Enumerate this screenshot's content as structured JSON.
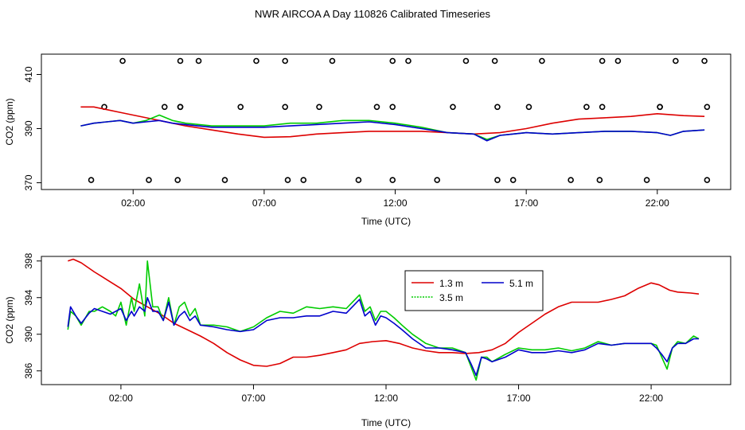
{
  "title": "NWR AIRCOA A  Day 110826  Calibrated Timeseries",
  "colors": {
    "1.3 m": "#dd0000",
    "3.5 m": "#00cc00",
    "5.1 m": "#0000cc"
  },
  "chart_data": [
    {
      "type": "line",
      "panel": "top",
      "xlabel": "Time (UTC)",
      "ylabel": "CO2 (ppm)",
      "xlim": [
        -1.5,
        24.8
      ],
      "ylim": [
        367.5,
        417.5
      ],
      "x_ticks": [
        2,
        7,
        12,
        17,
        22
      ],
      "x_tick_labels": [
        "02:00",
        "07:00",
        "12:00",
        "17:00",
        "22:00"
      ],
      "y_ticks": [
        370,
        390,
        410
      ],
      "y_tick_labels": [
        "370",
        "390",
        "410"
      ],
      "markers": {
        "upper_y": 415,
        "upper_x": [
          1.6,
          3.8,
          4.5,
          6.7,
          7.8,
          9.6,
          11.9,
          12.5,
          14.7,
          15.8,
          17.6,
          19.9,
          20.5,
          22.7,
          23.8
        ],
        "middle_y": 398,
        "middle_x": [
          0.9,
          3.2,
          3.8,
          3.8,
          6.1,
          7.8,
          9.1,
          11.3,
          11.9,
          14.2,
          15.9,
          17.1,
          19.3,
          19.9,
          22.1,
          22.1,
          23.9
        ],
        "lower_y": 371,
        "lower_x": [
          0.4,
          2.6,
          3.7,
          5.5,
          7.9,
          8.5,
          10.6,
          11.9,
          13.6,
          15.9,
          16.5,
          18.7,
          19.8,
          21.6,
          23.9
        ]
      },
      "series": [
        {
          "name": "1.3 m",
          "x": [
            0,
            0.5,
            1,
            1.5,
            2,
            2.5,
            3,
            4,
            5,
            6,
            7,
            8,
            9,
            10,
            11,
            12,
            13,
            14,
            15,
            16,
            17,
            18,
            19,
            20,
            21,
            22,
            23,
            23.8
          ],
          "values": [
            398,
            398,
            397,
            396,
            395,
            394,
            393,
            391,
            389.5,
            388,
            386.8,
            387,
            388,
            388.5,
            389,
            389,
            389,
            388.5,
            388,
            388.5,
            390,
            392,
            393.5,
            394,
            394.5,
            395.5,
            394.8,
            394.5
          ]
        },
        {
          "name": "3.5 m",
          "x": [
            0,
            0.5,
            1,
            1.5,
            2,
            2.5,
            3,
            3.5,
            4,
            5,
            6,
            7,
            8,
            9,
            10,
            11,
            12,
            13,
            14,
            15,
            15.5,
            16,
            17,
            18,
            19,
            20,
            21,
            22,
            22.5,
            23,
            23.8
          ],
          "values": [
            391,
            392,
            392.5,
            393,
            392,
            393,
            395,
            393,
            392,
            391,
            391,
            391,
            392,
            392,
            393,
            393,
            392,
            390.5,
            388.5,
            388,
            386,
            387.5,
            388.5,
            388,
            388.5,
            389,
            389,
            388.5,
            387.5,
            389,
            389.5
          ]
        },
        {
          "name": "5.1 m",
          "x": [
            0,
            0.5,
            1,
            1.5,
            2,
            2.5,
            3,
            3.5,
            4,
            5,
            6,
            7,
            8,
            9,
            10,
            11,
            12,
            13,
            14,
            15,
            15.5,
            16,
            17,
            18,
            19,
            20,
            21,
            22,
            22.5,
            23,
            23.8
          ],
          "values": [
            391,
            392,
            392.5,
            393,
            392,
            392.5,
            393,
            392,
            391.5,
            390.5,
            390.5,
            390.5,
            391,
            391.5,
            392,
            392.5,
            391.5,
            390,
            388.5,
            388,
            385.5,
            387.5,
            388.5,
            388,
            388.5,
            389,
            389,
            388.5,
            387.5,
            389,
            389.5
          ]
        }
      ]
    },
    {
      "type": "line",
      "panel": "bottom",
      "xlabel": "Time (UTC)",
      "ylabel": "CO2 (ppm)",
      "xlim": [
        -1.0,
        25.0
      ],
      "ylim": [
        384.5,
        398.5
      ],
      "x_ticks": [
        2,
        7,
        12,
        17,
        22
      ],
      "x_tick_labels": [
        "02:00",
        "07:00",
        "12:00",
        "17:00",
        "22:00"
      ],
      "y_ticks": [
        386,
        390,
        394,
        398
      ],
      "y_tick_labels": [
        "386",
        "390",
        "394",
        "398"
      ],
      "legend": {
        "position": "top-center",
        "entries": [
          "1.3 m",
          "3.5 m",
          "5.1 m"
        ]
      },
      "series": [
        {
          "name": "1.3 m",
          "x": [
            0,
            0.2,
            0.5,
            1,
            1.5,
            2,
            2.5,
            3,
            3.5,
            4,
            4.5,
            5,
            5.5,
            6,
            6.5,
            7,
            7.5,
            8,
            8.5,
            9,
            9.5,
            10,
            10.5,
            11,
            11.5,
            12,
            12.5,
            13,
            13.5,
            14,
            14.5,
            15,
            15.5,
            16,
            16.5,
            17,
            17.5,
            18,
            18.5,
            19,
            19.5,
            20,
            20.5,
            21,
            21.5,
            22,
            22.3,
            22.7,
            23,
            23.5,
            23.8
          ],
          "values": [
            398,
            398.2,
            397.8,
            396.8,
            395.9,
            395,
            393.8,
            393,
            392.2,
            391.2,
            390.5,
            389.8,
            389,
            388,
            387.2,
            386.6,
            386.5,
            386.8,
            387.5,
            387.5,
            387.7,
            388,
            388.3,
            389,
            389.2,
            389.3,
            389,
            388.5,
            388.2,
            388,
            388,
            387.9,
            388,
            388.3,
            389,
            390.2,
            391.2,
            392.2,
            393,
            393.5,
            393.5,
            393.5,
            393.8,
            394.2,
            395,
            395.6,
            395.4,
            394.8,
            394.6,
            394.5,
            394.4
          ]
        },
        {
          "name": "3.5 m",
          "x": [
            0,
            0.1,
            0.3,
            0.5,
            0.8,
            1,
            1.3,
            1.6,
            1.8,
            2,
            2.2,
            2.4,
            2.5,
            2.7,
            2.9,
            3,
            3.2,
            3.4,
            3.6,
            3.8,
            4,
            4.2,
            4.4,
            4.6,
            4.8,
            5,
            5.5,
            6,
            6.5,
            7,
            7.5,
            8,
            8.5,
            9,
            9.5,
            10,
            10.5,
            11,
            11.2,
            11.4,
            11.6,
            11.8,
            12,
            12.3,
            12.6,
            13,
            13.5,
            14,
            14.5,
            15,
            15.2,
            15.4,
            15.6,
            15.8,
            16,
            16.5,
            17,
            17.5,
            18,
            18.5,
            19,
            19.5,
            20,
            20.5,
            21,
            21.5,
            22,
            22.2,
            22.4,
            22.6,
            22.8,
            23,
            23.3,
            23.6,
            23.8
          ],
          "values": [
            390.5,
            392.5,
            392,
            391,
            392.5,
            392.5,
            393,
            392.5,
            392,
            393.5,
            391,
            394,
            392.5,
            395.5,
            392,
            398,
            393,
            393,
            391.5,
            394,
            391,
            393,
            393.5,
            392,
            392.8,
            391,
            391,
            390.8,
            390.3,
            390.8,
            391.8,
            392.5,
            392.3,
            393,
            392.8,
            393,
            392.8,
            394.3,
            392.5,
            393,
            391.5,
            392.5,
            392.5,
            391.8,
            391,
            390,
            389,
            388.5,
            388.5,
            388,
            386.5,
            385,
            387.5,
            387.5,
            387,
            387.8,
            388.5,
            388.3,
            388.3,
            388.5,
            388.2,
            388.5,
            389.2,
            388.8,
            389,
            389,
            389,
            388.8,
            387.5,
            386.2,
            388.5,
            389.2,
            389,
            389.8,
            389.5
          ]
        },
        {
          "name": "5.1 m",
          "x": [
            0,
            0.1,
            0.3,
            0.5,
            0.8,
            1,
            1.3,
            1.6,
            1.8,
            2,
            2.2,
            2.4,
            2.5,
            2.7,
            2.9,
            3,
            3.2,
            3.4,
            3.6,
            3.8,
            4,
            4.2,
            4.4,
            4.6,
            4.8,
            5,
            5.5,
            6,
            6.5,
            7,
            7.5,
            8,
            8.5,
            9,
            9.5,
            10,
            10.5,
            11,
            11.2,
            11.4,
            11.6,
            11.8,
            12,
            12.3,
            12.6,
            13,
            13.5,
            14,
            14.5,
            15,
            15.2,
            15.4,
            15.6,
            15.8,
            16,
            16.5,
            17,
            17.5,
            18,
            18.5,
            19,
            19.5,
            20,
            20.5,
            21,
            21.5,
            22,
            22.2,
            22.4,
            22.6,
            22.8,
            23,
            23.3,
            23.6,
            23.8
          ],
          "values": [
            390.8,
            393,
            392,
            391.2,
            392.3,
            392.8,
            392.5,
            392.2,
            392.5,
            392.8,
            391.5,
            392.5,
            392,
            393,
            392.5,
            394,
            392.5,
            392.5,
            391.5,
            393.5,
            391,
            392,
            392.5,
            391.5,
            392,
            391,
            390.8,
            390.5,
            390.3,
            390.5,
            391.5,
            391.8,
            391.8,
            392,
            392,
            392.5,
            392.3,
            393.8,
            392,
            392.5,
            391,
            392,
            391.8,
            391.2,
            390.5,
            389.5,
            388.5,
            388.5,
            388.3,
            388,
            386.8,
            385.5,
            387.5,
            387.3,
            387,
            387.5,
            388.3,
            388,
            388,
            388.2,
            388,
            388.3,
            389,
            388.8,
            389,
            389,
            389,
            388.5,
            387.8,
            387,
            388.5,
            389,
            389,
            389.5,
            389.5
          ]
        }
      ]
    }
  ]
}
